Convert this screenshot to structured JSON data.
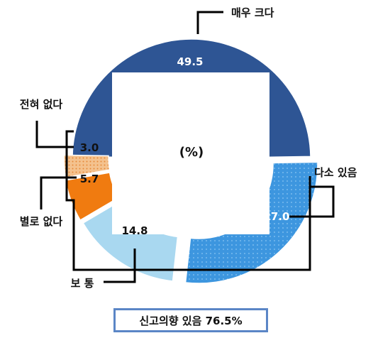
{
  "chart_data": {
    "type": "pie",
    "center_label": "(%)",
    "slices": [
      {
        "label": "매우 크다",
        "value": 49.5,
        "value_text": "49.5",
        "color": "#2e5594"
      },
      {
        "label": "다소 있음",
        "value": 27.0,
        "value_text": "27.0",
        "color": "#3d96df"
      },
      {
        "label": "보 통",
        "value": 14.8,
        "value_text": "14.8",
        "color": "#a9d8f0"
      },
      {
        "label": "별로 없다",
        "value": 5.7,
        "value_text": "5.7",
        "color": "#f07b10"
      },
      {
        "label": "전혀 없다",
        "value": 3.0,
        "value_text": "3.0",
        "color": "#f4c28e"
      }
    ]
  },
  "summary": "신고의향 있음 76.5%"
}
